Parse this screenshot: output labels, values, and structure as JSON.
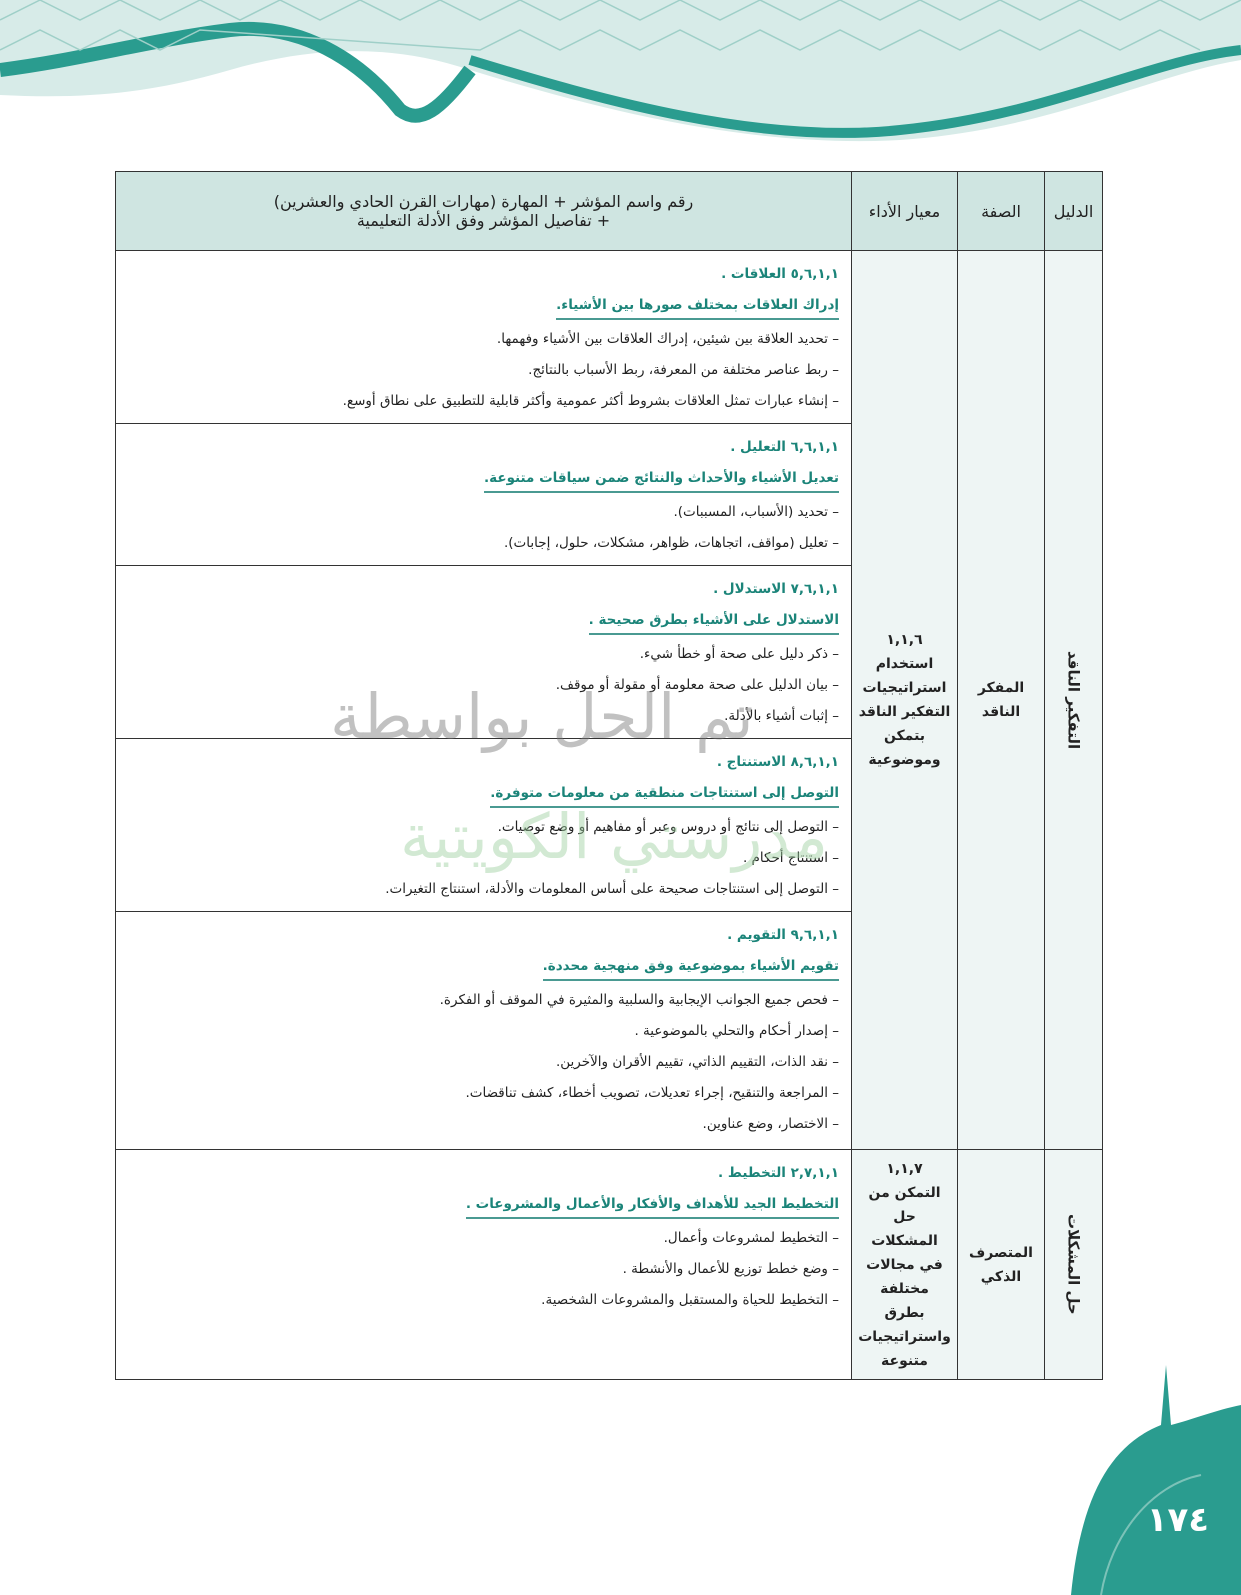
{
  "header": {
    "col_guide": "الدليل",
    "col_attribute": "الصفة",
    "col_standard": "معيار الأداء",
    "col_details_line1": "رقم واسم المؤشر + المهارة (مهارات القرن الحادي والعشرين)",
    "col_details_line2": "+ تفاصيل المؤشر وفق الأدلة التعليمية"
  },
  "groups": [
    {
      "guide": "التفكير الناقد",
      "attribute": "المفكر الناقد",
      "standard_code": "١,١,٦",
      "standard_text": "استخدام استراتيجيات التفكير الناقد بتمكن وموضوعية",
      "sections": [
        {
          "code": "٥,٦,١,١ العلاقات .",
          "title": "إدراك العلاقات بمختلف صورها بين الأشياء.",
          "items": [
            "– تحديد العلاقة بين شيئين، إدراك العلاقات بين الأشياء وفهمها.",
            "– ربط عناصر مختلفة من المعرفة، ربط الأسباب بالنتائج.",
            "– إنشاء عبارات تمثل العلاقات بشروط أكثر عمومية وأكثر قابلية للتطبيق على نطاق أوسع."
          ]
        },
        {
          "code": "٦,٦,١,١ التعليل .",
          "title": "تعديل الأشياء والأحداث والنتائج ضمن سياقات متنوعة.",
          "items": [
            "– تحديد (الأسباب، المسببات).",
            "– تعليل (مواقف، اتجاهات، ظواهر، مشكلات، حلول، إجابات)."
          ]
        },
        {
          "code": "٧,٦,١,١ الاستدلال .",
          "title": "الاستدلال على الأشياء بطرق صحيحة .",
          "items": [
            "– ذكر دليل على صحة أو خطأ شيء.",
            "– بيان الدليل على صحة معلومة أو مقولة أو موقف.",
            "– إثبات أشياء بالأدلة."
          ]
        },
        {
          "code": "٨,٦,١,١ الاستنتاج .",
          "title": "التوصل إلى استنتاجات منطقية من معلومات متوفرة.",
          "items": [
            "– التوصل إلى نتائج أو دروس وعبر أو مفاهيم أو وضع توصيات.",
            "– استنتاج أحكام .",
            "– التوصل إلى استنتاجات صحيحة على أساس المعلومات والأدلة، استنتاج التغيرات."
          ]
        },
        {
          "code": "٩,٦,١,١ التقويم .",
          "title": "تقويم الأشياء بموضوعية وفق منهجية محددة.",
          "items": [
            "– فحص جميع الجوانب الإيجابية والسلبية والمثيرة في الموقف أو الفكرة.",
            "– إصدار أحكام والتحلي بالموضوعية .",
            "– نقد الذات، التقييم الذاتي، تقييم الأقران والآخرين.",
            "– المراجعة والتنقيح، إجراء تعديلات، تصويب أخطاء، كشف تناقضات.",
            "– الاختصار، وضع عناوين."
          ]
        }
      ]
    },
    {
      "guide": "حل المشكلات",
      "attribute": "المتصرف الذكي",
      "standard_code": "١,١,٧",
      "standard_text": "التمكن من حل المشكلات في مجالات مختلفة بطرق واستراتيجيات متنوعة",
      "sections": [
        {
          "code": "٢,٧,١,١ التخطيط .",
          "title": "التخطيط الجيد للأهداف والأفكار والأعمال والمشروعات .",
          "items": [
            "– التخطيط لمشروعات وأعمال.",
            "– وضع خطط توزيع للأعمال والأنشطة .",
            "– التخطيط للحياة والمستقبل والمشروعات الشخصية."
          ]
        }
      ]
    }
  ],
  "watermark": {
    "line1": "تم الحل بواسطة",
    "line2": "مدرستي الكويتية"
  },
  "page_number": "١٧٤",
  "colors": {
    "teal": "#1b8479",
    "header_bg": "#cfe5e1",
    "side_bg": "#eef5f4",
    "band": "#2a9c8f"
  }
}
